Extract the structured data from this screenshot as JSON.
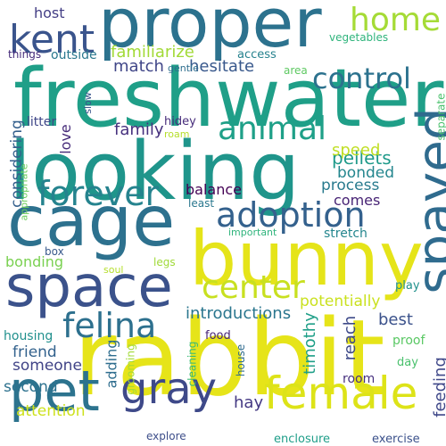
{
  "words": {
    "rabbit": {
      "text": "rabbit",
      "color": "#e6e419"
    },
    "freshwater": {
      "text": "freshwater",
      "color": "#1f9f88"
    },
    "looking": {
      "text": "looking",
      "color": "#1f958b"
    },
    "cage": {
      "text": "cage",
      "color": "#2d718e"
    },
    "proper": {
      "text": "proper",
      "color": "#2c728e"
    },
    "bunny": {
      "text": "bunny",
      "color": "#e5e419"
    },
    "space": {
      "text": "space",
      "color": "#3b528b"
    },
    "spayed": {
      "text": "spayed",
      "color": "#2f6b8e"
    },
    "pet": {
      "text": "pet",
      "color": "#2c738e"
    },
    "female": {
      "text": "female",
      "color": "#dde318"
    },
    "gray": {
      "text": "gray",
      "color": "#3e4989"
    },
    "adoption": {
      "text": "adoption",
      "color": "#34618d"
    },
    "forever": {
      "text": "forever",
      "color": "#25838e"
    },
    "felina": {
      "text": "felina",
      "color": "#2d708e"
    },
    "animal": {
      "text": "animal",
      "color": "#1fa088"
    },
    "center": {
      "text": "center",
      "color": "#c8e020"
    },
    "kent": {
      "text": "kent",
      "color": "#3a548c"
    },
    "control": {
      "text": "control",
      "color": "#2c728e"
    },
    "home": {
      "text": "home",
      "color": "#a5db36"
    },
    "host": {
      "text": "host",
      "color": "#433e85"
    },
    "familiarize": {
      "text": "familiarize",
      "color": "#a2da37"
    },
    "match": {
      "text": "match",
      "color": "#404688"
    },
    "hesitate": {
      "text": "hesitate",
      "color": "#38588c"
    },
    "outside": {
      "text": "outside",
      "color": "#2a788e"
    },
    "access": {
      "text": "access",
      "color": "#26828e"
    },
    "gentle": {
      "text": "gentle",
      "color": "#2e6e8e"
    },
    "area": {
      "text": "area",
      "color": "#5ec962"
    },
    "things": {
      "text": "things",
      "color": "#472d7b"
    },
    "vegetables": {
      "text": "vegetables",
      "color": "#2fb47c"
    },
    "family": {
      "text": "family",
      "color": "#46317e"
    },
    "hidey": {
      "text": "hidey",
      "color": "#472d7b"
    },
    "roam": {
      "text": "roam",
      "color": "#b5de2b"
    },
    "litter": {
      "text": "litter",
      "color": "#3f4788"
    },
    "slow": {
      "text": "slow",
      "color": "#39568c"
    },
    "considering": {
      "text": "considering",
      "color": "#35608d"
    },
    "appropriate": {
      "text": "appropriate",
      "color": "#6ccd5a"
    },
    "love": {
      "text": "love",
      "color": "#472c7a"
    },
    "pellets": {
      "text": "pellets",
      "color": "#1f9a8a"
    },
    "speed": {
      "text": "speed",
      "color": "#c0df25"
    },
    "bonded": {
      "text": "bonded",
      "color": "#24868e"
    },
    "process": {
      "text": "process",
      "color": "#297b8e"
    },
    "comes": {
      "text": "comes",
      "color": "#482475"
    },
    "balance": {
      "text": "balance",
      "color": "#440154"
    },
    "least": {
      "text": "least",
      "color": "#2a778e"
    },
    "box": {
      "text": "box",
      "color": "#38598c"
    },
    "important": {
      "text": "important",
      "color": "#2fb47c"
    },
    "stretch": {
      "text": "stretch",
      "color": "#24868e"
    },
    "bonding": {
      "text": "bonding",
      "color": "#7ad151"
    },
    "soul": {
      "text": "soul",
      "color": "#b5de2b"
    },
    "legs": {
      "text": "legs",
      "color": "#a0da39"
    },
    "potentially": {
      "text": "potentially",
      "color": "#cae11f"
    },
    "introductions": {
      "text": "introductions",
      "color": "#2a768e"
    },
    "separate": {
      "text": "separate",
      "color": "#4ac16d"
    },
    "play": {
      "text": "play",
      "color": "#21918c"
    },
    "reach": {
      "text": "reach",
      "color": "#3e4a89"
    },
    "best": {
      "text": "best",
      "color": "#3b528b"
    },
    "housing": {
      "text": "housing",
      "color": "#21908d"
    },
    "food": {
      "text": "food",
      "color": "#482576"
    },
    "friend": {
      "text": "friend",
      "color": "#33628d"
    },
    "someone": {
      "text": "someone",
      "color": "#414487"
    },
    "proof": {
      "text": "proof",
      "color": "#5ac864"
    },
    "second": {
      "text": "second",
      "color": "#2d718e"
    },
    "adding": {
      "text": "adding",
      "color": "#2e6d8e"
    },
    "grooming": {
      "text": "grooming",
      "color": "#a2da37"
    },
    "cleaning": {
      "text": "cleaning",
      "color": "#3aba76"
    },
    "house": {
      "text": "house",
      "color": "#2f6b8e"
    },
    "timothy": {
      "text": "timothy",
      "color": "#1f9f88"
    },
    "room": {
      "text": "room",
      "color": "#46307e"
    },
    "day": {
      "text": "day",
      "color": "#4ac16d"
    },
    "feeding": {
      "text": "feeding",
      "color": "#3f4889"
    },
    "attention": {
      "text": "attention",
      "color": "#cde11d"
    },
    "hay": {
      "text": "hay",
      "color": "#443983"
    },
    "explore": {
      "text": "explore",
      "color": "#3d4e8a"
    },
    "enclosure": {
      "text": "enclosure",
      "color": "#1f9e89"
    },
    "exercise": {
      "text": "exercise",
      "color": "#3b518b"
    }
  }
}
